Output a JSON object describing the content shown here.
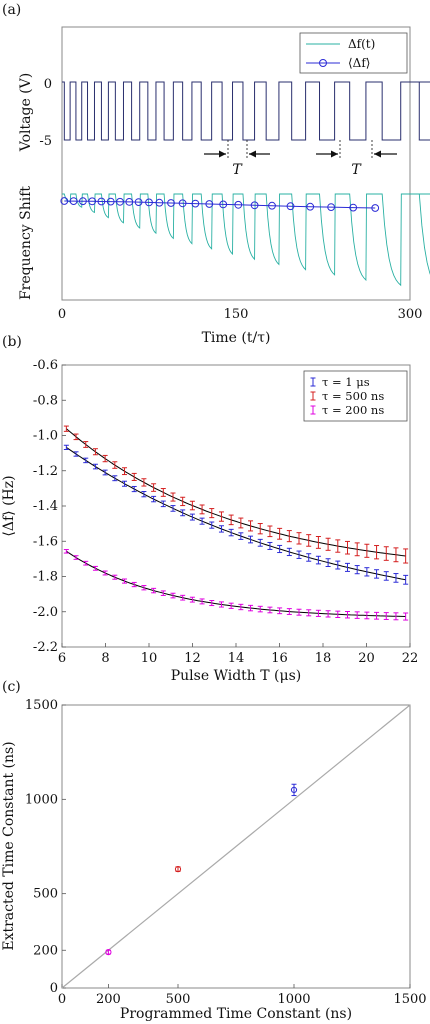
{
  "chart_data": [
    {
      "panel": "(a)",
      "type": "line",
      "xlabel": "Time (t/τ)",
      "ylabel_top": "Voltage (V)",
      "ylabel_bottom": "Frequency Shift",
      "xlim": [
        0,
        300
      ],
      "xticks": [
        "0",
        "150",
        "300"
      ],
      "voltage_ticks": [
        "0",
        "-5"
      ],
      "legend": [
        {
          "name": "Δf(t)",
          "color": "#2ab0a3"
        },
        {
          "name": "⟨Δf⟩",
          "color": "#2b2bd6"
        }
      ],
      "annotations": [
        "T",
        "T"
      ],
      "pulse_widths": [
        5,
        5,
        6,
        6,
        7,
        7,
        7,
        8,
        8,
        9,
        9,
        10,
        11,
        12,
        13,
        14,
        16,
        18
      ],
      "mean_shift": {
        "x": [
          2,
          10,
          18,
          26,
          34,
          42,
          50,
          58,
          66,
          75,
          84,
          94,
          104,
          115,
          127,
          139,
          152,
          166,
          181,
          197,
          214,
          232,
          251,
          270
        ],
        "values": [
          -0.72,
          -0.73,
          -0.74,
          -0.75,
          -0.77,
          -0.78,
          -0.8,
          -0.82,
          -0.84,
          -0.87,
          -0.9,
          -0.93,
          -0.96,
          -1.0,
          -1.04,
          -1.08,
          -1.12,
          -1.17,
          -1.22,
          -1.27,
          -1.32,
          -1.37,
          -1.42,
          -1.46
        ]
      }
    },
    {
      "panel": "(b)",
      "type": "line",
      "xlabel": "Pulse Width T (μs)",
      "ylabel": "⟨Δf⟩ (Hz)",
      "xlim": [
        6,
        22
      ],
      "ylim": [
        -2.2,
        -0.6
      ],
      "xticks": [
        "6",
        "8",
        "10",
        "12",
        "14",
        "16",
        "18",
        "20",
        "22"
      ],
      "yticks": [
        "-0.6",
        "-0.8",
        "-1.0",
        "-1.2",
        "-1.4",
        "-1.6",
        "-1.8",
        "-2.0",
        "-2.2"
      ],
      "legend_position": "top-right",
      "series": [
        {
          "name": "τ = 1 μs",
          "color": "#2b2bd6",
          "amplitude": 1.05,
          "tau": 12.0,
          "offset": -2.1,
          "yerr": [
            0.012,
            0.025
          ]
        },
        {
          "name": "τ = 500 ns",
          "color": "#d41f1f",
          "amplitude": 0.86,
          "tau": 7.9,
          "offset": -1.8,
          "yerr": [
            0.015,
            0.04
          ]
        },
        {
          "name": "τ = 200 ns",
          "color": "#e000e0",
          "amplitude": 0.4,
          "tau": 4.6,
          "offset": -2.04,
          "yerr": [
            0.01,
            0.02
          ]
        }
      ],
      "x_range": [
        6.2,
        21.8
      ],
      "n_points": 36
    },
    {
      "panel": "(c)",
      "type": "scatter",
      "xlabel": "Programmed Time Constant (ns)",
      "ylabel": "Extracted Time Constant (ns)",
      "xlim": [
        0,
        1500
      ],
      "ylim": [
        0,
        1500
      ],
      "xticks": [
        "0",
        "200",
        "500",
        "1000",
        "1500"
      ],
      "yticks": [
        "0",
        "200",
        "500",
        "1000",
        "1500"
      ],
      "reference_line": "y = x",
      "points": [
        {
          "x": 200,
          "y": 190,
          "err": 10,
          "color": "#e000e0"
        },
        {
          "x": 500,
          "y": 630,
          "err": 12,
          "color": "#d41f1f"
        },
        {
          "x": 1000,
          "y": 1050,
          "err": 30,
          "color": "#2b2bd6"
        }
      ]
    }
  ]
}
